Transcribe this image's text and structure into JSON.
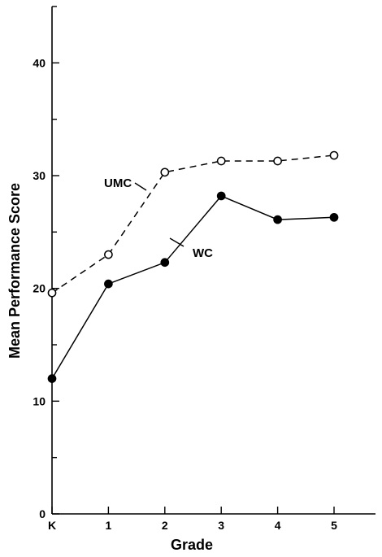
{
  "chart_data": {
    "type": "line",
    "xlabel": "Grade",
    "ylabel": "Mean Performance Score",
    "categories": [
      "K",
      "1",
      "2",
      "3",
      "4",
      "5"
    ],
    "ylim": [
      0,
      45
    ],
    "yticks": [
      0,
      10,
      20,
      30,
      40
    ],
    "grid": false,
    "series": [
      {
        "name": "UMC",
        "style": "dashed",
        "marker": "open-circle",
        "color": "#000000",
        "values": [
          19.6,
          23.0,
          30.3,
          31.3,
          31.3,
          31.8
        ]
      },
      {
        "name": "WC",
        "style": "solid",
        "marker": "filled-circle",
        "color": "#000000",
        "values": [
          12.0,
          20.4,
          22.3,
          28.2,
          26.1,
          26.3
        ]
      }
    ]
  }
}
